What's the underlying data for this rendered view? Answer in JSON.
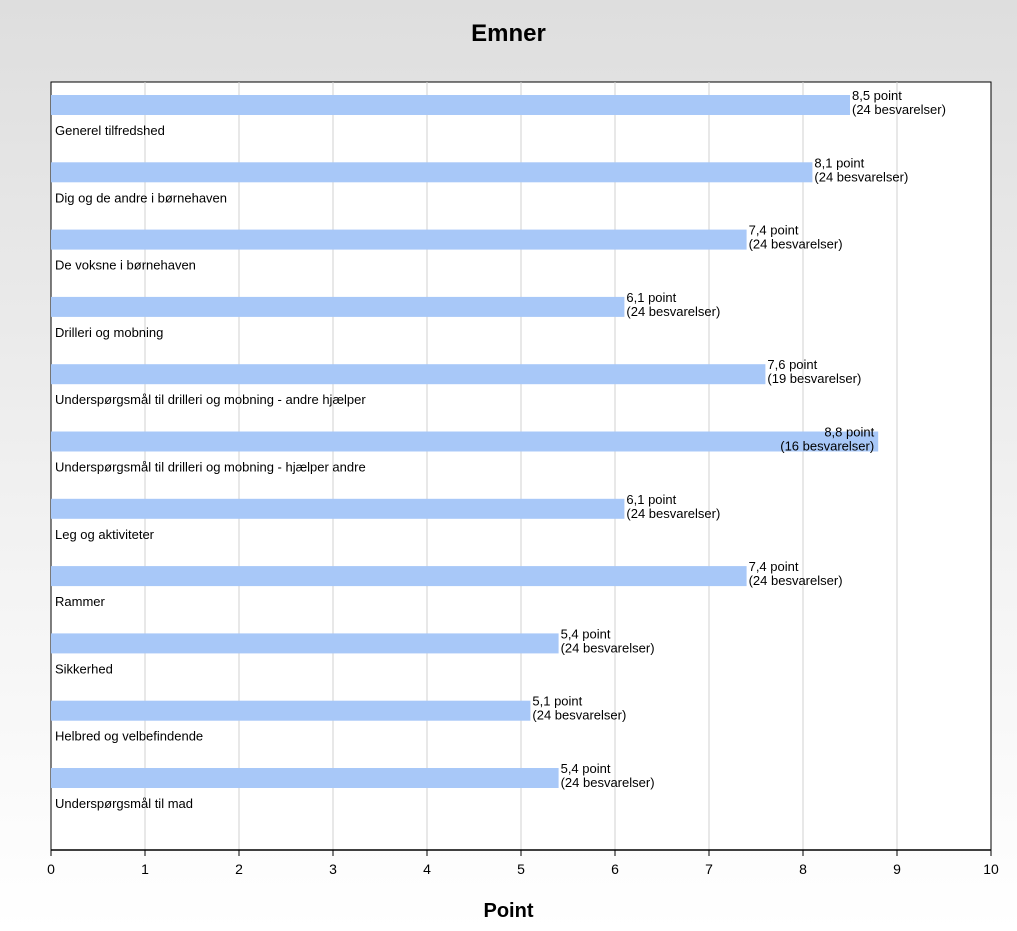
{
  "chart_data": {
    "type": "bar",
    "orientation": "horizontal",
    "title": "Emner",
    "xlabel": "Point",
    "ylabel": "",
    "xlim": [
      0,
      10
    ],
    "xticks": [
      "0",
      "1",
      "2",
      "3",
      "4",
      "5",
      "6",
      "7",
      "8",
      "9",
      "10"
    ],
    "grid": true,
    "bar_color": "#a8c8f8",
    "categories": [
      "Generel tilfredshed",
      "Dig og de andre i børnehaven",
      "De voksne i børnehaven",
      "Drilleri og mobning",
      "Underspørgsmål til drilleri og mobning - andre hjælper",
      "Underspørgsmål til drilleri og mobning - hjælper andre",
      "Leg og aktiviteter",
      "Rammer",
      "Sikkerhed",
      "Helbred og velbefindende",
      "Underspørgsmål til mad"
    ],
    "values": [
      8.5,
      8.1,
      7.4,
      6.1,
      7.6,
      8.8,
      6.1,
      7.4,
      5.4,
      5.1,
      5.4
    ],
    "value_labels": [
      "8,5 point",
      "8,1 point",
      "7,4 point",
      "6,1 point",
      "7,6 point",
      "8,8 point",
      "6,1 point",
      "7,4 point",
      "5,4 point",
      "5,1 point",
      "5,4 point"
    ],
    "count_labels": [
      "(24 besvarelser)",
      "(24 besvarelser)",
      "(24 besvarelser)",
      "(24 besvarelser)",
      "(19 besvarelser)",
      "(16 besvarelser)",
      "(24 besvarelser)",
      "(24 besvarelser)",
      "(24 besvarelser)",
      "(24 besvarelser)",
      "(24 besvarelser)"
    ]
  }
}
